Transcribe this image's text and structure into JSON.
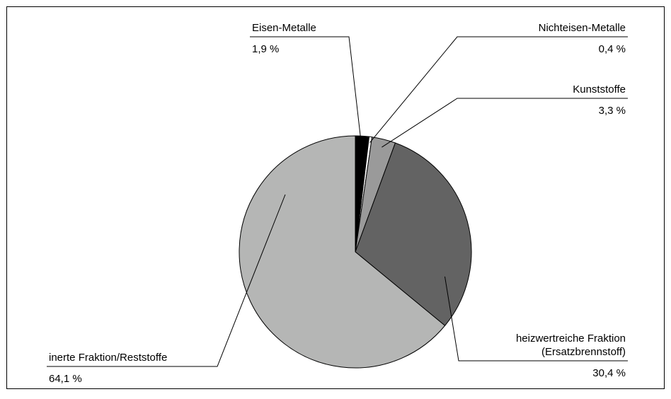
{
  "chart_data": {
    "type": "pie",
    "title": "",
    "slices": [
      {
        "label": "Eisen-Metalle",
        "label_lines": [
          "Eisen-Metalle"
        ],
        "value": 1.9,
        "value_label": "1,9 %",
        "color": "#000000"
      },
      {
        "label": "Nichteisen-Metalle",
        "label_lines": [
          "Nichteisen-Metalle"
        ],
        "value": 0.4,
        "value_label": "0,4 %",
        "color": "#ffffff"
      },
      {
        "label": "Kunststoffe",
        "label_lines": [
          "Kunststoffe"
        ],
        "value": 3.3,
        "value_label": "3,3 %",
        "color": "#9a9a9a"
      },
      {
        "label": "heizwertreiche Fraktion (Ersatzbrennstoff)",
        "label_lines": [
          "heizwertreiche Fraktion",
          "(Ersatzbrennstoff)"
        ],
        "value": 30.4,
        "value_label": "30,4 %",
        "color": "#636363"
      },
      {
        "label": "inerte Fraktion/Reststoffe",
        "label_lines": [
          "inerte Fraktion/Reststoffe"
        ],
        "value": 64.1,
        "value_label": "64,1 %",
        "color": "#b5b6b5"
      }
    ],
    "start_angle": "12 o'clock",
    "direction": "clockwise",
    "frame_color": "#000000",
    "outline_color": "#000000"
  }
}
